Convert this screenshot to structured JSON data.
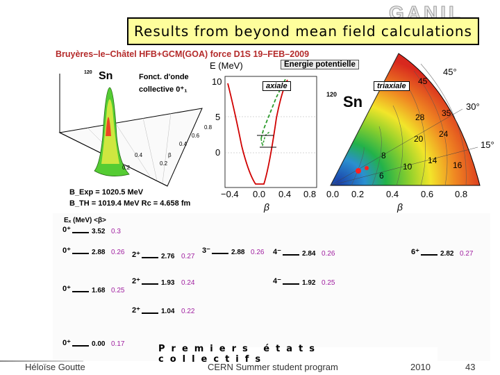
{
  "slide_title": "Results from beyond mean field calculations",
  "logo_text": "GANIL",
  "figure": {
    "header": "Bruyères–le–Châtel HFB+GCM(GOA) force D1S 19–FEB–2009",
    "left_nucleus": "Sn",
    "left_mass": "120",
    "fonct_label_1": "Fonct. d'onde",
    "fonct_label_2": "collective 0⁺₁",
    "b_exp": "B_Exp = 1020.5 MeV",
    "b_th": "B_TH = 1019.4 MeV Rc = 4.658 fm",
    "axis_e_label": "E (MeV)",
    "energie_label": "Energie potentielle",
    "axiale_label": "axiale",
    "triaxiale_label": "triaxiale",
    "right_nucleus": "Sn",
    "right_mass": "120",
    "beta_label": "β",
    "mid_y_ticks": [
      "10",
      "5",
      "0"
    ],
    "mid_x_ticks": [
      "−0.4",
      "0.0",
      "0.4",
      "0.8"
    ],
    "right_x_ticks": [
      "0.0",
      "0.2",
      "0.4",
      "0.6",
      "0.8"
    ],
    "angle_labels": [
      "45°",
      "30°",
      "15°"
    ],
    "contour_labels": [
      "45",
      "35",
      "28",
      "24",
      "20",
      "16",
      "14",
      "10",
      "8",
      "6"
    ],
    "left_ticks": [
      "0.8",
      "0.6",
      "0.4",
      "0.2",
      "β",
      "0.8",
      "0.6",
      "0.4",
      "0.2"
    ],
    "level_header": "Eₓ (MeV) <β>",
    "levels": [
      {
        "jpi": "0⁺",
        "e": "3.52",
        "b": "0.3"
      },
      {
        "jpi": "0⁺",
        "e": "2.88",
        "b": "0.26"
      },
      {
        "jpi": "2⁺",
        "e": "2.76",
        "b": "0.27"
      },
      {
        "jpi": "3⁻",
        "e": "2.88",
        "b": "0.26"
      },
      {
        "jpi": "4⁻",
        "e": "2.84",
        "b": "0.26"
      },
      {
        "jpi": "6⁺",
        "e": "2.82",
        "b": "0.27"
      },
      {
        "jpi": "0⁺",
        "e": "1.68",
        "b": "0.25"
      },
      {
        "jpi": "2⁺",
        "e": "1.93",
        "b": "0.24"
      },
      {
        "jpi": "4⁻",
        "e": "1.92",
        "b": "0.25"
      },
      {
        "jpi": "2⁺",
        "e": "1.04",
        "b": "0.22"
      },
      {
        "jpi": "0⁺",
        "e": "0.00",
        "b": "0.17"
      }
    ],
    "premiers_label": "Premiers états collectifs"
  },
  "footer": {
    "author": "Héloïse Goutte",
    "event": "CERN Summer student program",
    "year": "2010",
    "page": "43"
  },
  "colors": {
    "title_bg": "#fefe9c",
    "header_red": "#b42a2a",
    "curve_red": "#d00000",
    "curve_green": "#2a9a2a",
    "beta_purple": "#a020a0"
  }
}
